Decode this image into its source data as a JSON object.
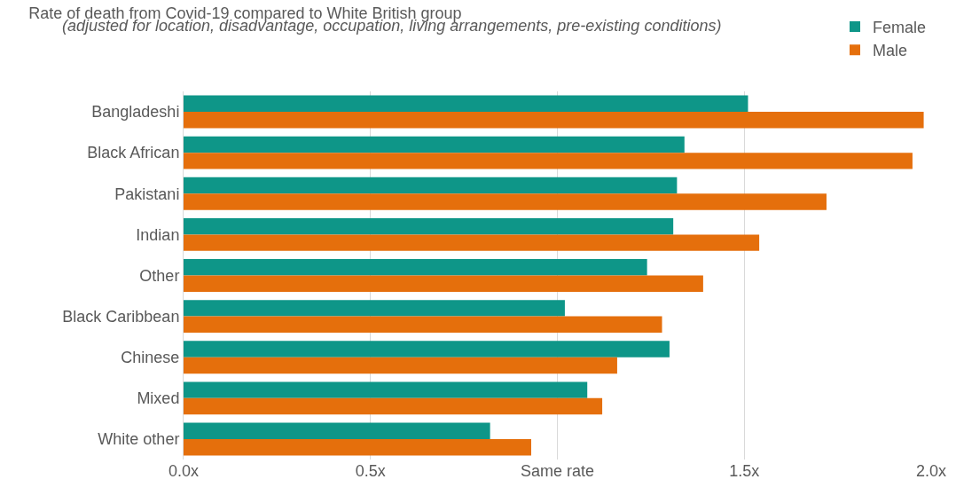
{
  "chart_data": {
    "type": "bar",
    "orientation": "horizontal",
    "title": "Rate of death from Covid-19 compared to White British group",
    "subtitle": "(adjusted for location, disadvantage, occupation, living arrangements, pre-existing conditions)",
    "categories": [
      "Bangladeshi",
      "Black African",
      "Pakistani",
      "Indian",
      "Other",
      "Black Caribbean",
      "Chinese",
      "Mixed",
      "White other"
    ],
    "series": [
      {
        "name": "Female",
        "color": "#0e9688",
        "values": [
          1.51,
          1.34,
          1.32,
          1.31,
          1.24,
          1.02,
          1.3,
          1.08,
          0.82
        ]
      },
      {
        "name": "Male",
        "color": "#e56f0c",
        "values": [
          1.98,
          1.95,
          1.72,
          1.54,
          1.39,
          1.28,
          1.16,
          1.12,
          0.93
        ]
      }
    ],
    "xlim": [
      0,
      2
    ],
    "xticks": [
      {
        "value": 0,
        "label": "0.0x"
      },
      {
        "value": 0.5,
        "label": "0.5x"
      },
      {
        "value": 1,
        "label": "Same rate"
      },
      {
        "value": 1.5,
        "label": "1.5x"
      },
      {
        "value": 2,
        "label": "2.0x"
      }
    ],
    "grid": "x",
    "legend": "top right"
  }
}
